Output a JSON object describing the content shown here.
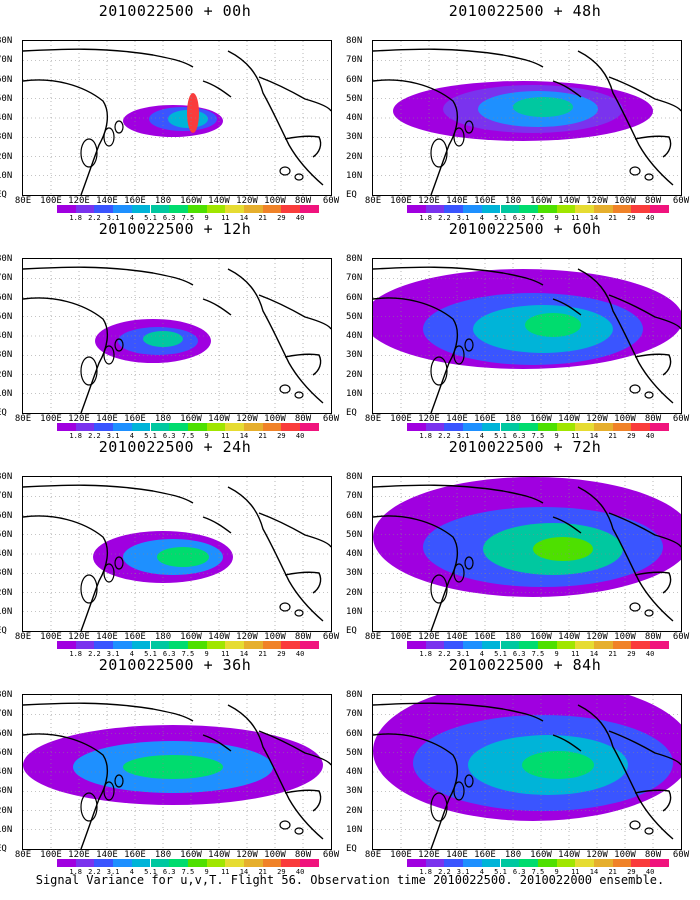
{
  "panels": [
    {
      "title": "2010022500 + 00h"
    },
    {
      "title": "2010022500 + 48h"
    },
    {
      "title": "2010022500 + 12h"
    },
    {
      "title": "2010022500 + 60h"
    },
    {
      "title": "2010022500 + 24h"
    },
    {
      "title": "2010022500 + 72h"
    },
    {
      "title": "2010022500 + 36h"
    },
    {
      "title": "2010022500 + 84h"
    }
  ],
  "lat_labels": [
    "80N",
    "70N",
    "60N",
    "50N",
    "40N",
    "30N",
    "20N",
    "10N",
    "EQ"
  ],
  "lon_labels": [
    "80E",
    "100E",
    "120E",
    "140E",
    "160E",
    "180",
    "160W",
    "140W",
    "120W",
    "100W",
    "80W",
    "60W"
  ],
  "colorbar": {
    "labels": [
      "1.8",
      "2.2",
      "3.1",
      "4",
      "5.1",
      "6.3",
      "7.5",
      "9",
      "11",
      "14",
      "21",
      "29",
      "40"
    ],
    "colors": [
      "#a000e0",
      "#7a33ee",
      "#3a55ff",
      "#1e90ff",
      "#00b4d8",
      "#00c8a0",
      "#00dc6e",
      "#4ee000",
      "#a0e600",
      "#e6dc32",
      "#e6af2d",
      "#f08228",
      "#fa3c3c",
      "#f0147d"
    ]
  },
  "caption": "Signal Variance for u,v,T. Flight 56. Observation time 2010022500. 2010022000 ensemble."
}
